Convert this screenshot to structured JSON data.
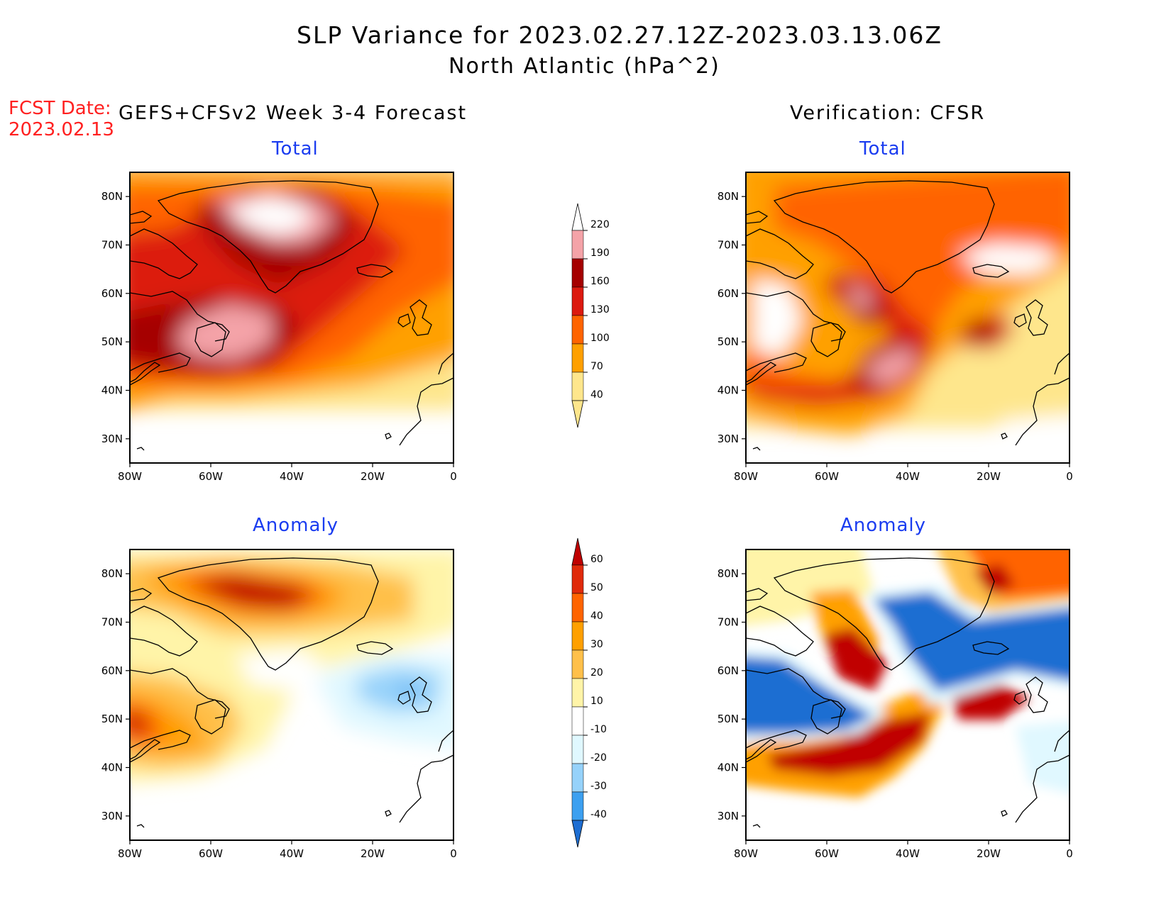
{
  "title": "SLP Variance for 2023.02.27.12Z-2023.03.13.06Z",
  "subtitle": "North Atlantic (hPa^2)",
  "fcst_date_label": "FCST Date:",
  "fcst_date_value": "2023.02.13",
  "left_header": "GEFS+CFSv2 Week 3-4 Forecast",
  "right_header": "Verification: CFSR",
  "panel_titles": {
    "fcst_total": "Total",
    "verif_total": "Total",
    "fcst_anomaly": "Anomaly",
    "verif_anomaly": "Anomaly"
  },
  "axes": {
    "lat_labels": [
      "80N",
      "70N",
      "60N",
      "50N",
      "40N",
      "30N"
    ],
    "lon_labels": [
      "80W",
      "60W",
      "40W",
      "20W",
      "0"
    ]
  },
  "colorbar_total": {
    "levels": [
      "220",
      "190",
      "160",
      "130",
      "100",
      "70",
      "40"
    ],
    "colors": [
      "#ffffff",
      "#f4a3a8",
      "#a50000",
      "#dc1a0f",
      "#ff6400",
      "#ffa000",
      "#fee68c"
    ]
  },
  "colorbar_anomaly": {
    "levels": [
      "60",
      "50",
      "40",
      "30",
      "20",
      "10",
      "-10",
      "-20",
      "-30",
      "-40"
    ],
    "colors": [
      "#c00000",
      "#e02a0a",
      "#ff6400",
      "#ffa000",
      "#ffc04a",
      "#fff4a8",
      "#ffffff",
      "#e0f8ff",
      "#96d2fa",
      "#3ca0f0",
      "#1e6ed2"
    ]
  },
  "chart_data": [
    {
      "type": "heatmap",
      "name": "forecast-total",
      "xlim": [
        -80,
        0
      ],
      "ylim": [
        25,
        85
      ],
      "features": [
        {
          "desc": "max over Greenland",
          "lat": 77,
          "lon": -40,
          "value": 220
        },
        {
          "desc": "max off Newfoundland",
          "lat": 48,
          "lon": -55,
          "value": 190
        }
      ]
    },
    {
      "type": "heatmap",
      "name": "verification-total",
      "xlim": [
        -80,
        0
      ],
      "ylim": [
        25,
        85
      ],
      "features": [
        {
          "desc": "max",
          "lat": 57,
          "lon": -48,
          "value": 190
        },
        {
          "desc": "max",
          "lat": 44,
          "lon": -40,
          "value": 190
        },
        {
          "desc": "max",
          "lat": 50,
          "lon": -20,
          "value": 160
        }
      ]
    },
    {
      "type": "heatmap",
      "name": "forecast-anomaly",
      "xlim": [
        -80,
        0
      ],
      "ylim": [
        25,
        85
      ],
      "features": [
        {
          "desc": "positive",
          "lat": 76,
          "lon": -40,
          "value": 50
        },
        {
          "desc": "negative",
          "lat": 53,
          "lon": -15,
          "value": -20
        }
      ]
    },
    {
      "type": "heatmap",
      "name": "verification-anomaly",
      "xlim": [
        -80,
        0
      ],
      "ylim": [
        25,
        85
      ],
      "features": [
        {
          "desc": "negative",
          "lat": 65,
          "lon": -25,
          "value": -40
        },
        {
          "desc": "positive",
          "lat": 45,
          "lon": -40,
          "value": 60
        }
      ]
    }
  ]
}
